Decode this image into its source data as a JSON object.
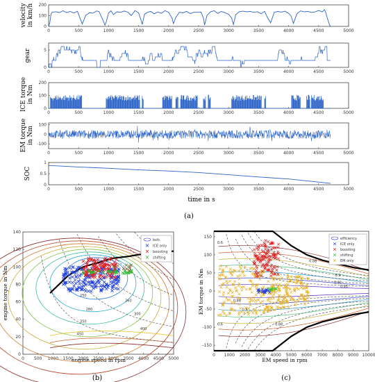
{
  "captions": {
    "a": "(a)",
    "b": "(b)",
    "c": "(c)"
  },
  "chart_data": [
    {
      "type": "line",
      "ylabel": "velocity in km/h",
      "xlim": [
        0,
        5000
      ],
      "ylim": [
        0,
        200
      ],
      "xticks": [
        "0",
        "500",
        "1000",
        "1500",
        "2000",
        "2500",
        "3000",
        "3500",
        "4000",
        "4500",
        "5000"
      ],
      "yticks": [
        "0",
        "100",
        "200"
      ],
      "color": "#2a62c8",
      "x": [
        0,
        20,
        40,
        60,
        120,
        180,
        240,
        300,
        360,
        420,
        480,
        520,
        560,
        620,
        680,
        740,
        800,
        840,
        900,
        940,
        960,
        1000,
        1040,
        1080,
        1140,
        1200,
        1260,
        1320,
        1380,
        1440,
        1500,
        1540,
        1560,
        1600,
        1640,
        1700,
        1760,
        1820,
        1880,
        1940,
        2000,
        2060,
        2080,
        2120,
        2180,
        2240,
        2300,
        2360,
        2420,
        2480,
        2540,
        2580,
        2600,
        2640,
        2700,
        2760,
        2820,
        2880,
        2940,
        3000,
        3050,
        3080,
        3120,
        3180,
        3240,
        3300,
        3360,
        3420,
        3480,
        3540,
        3600,
        3640,
        3700,
        3760,
        3820,
        3880,
        3940,
        4000,
        4040,
        4080,
        4140,
        4200,
        4260,
        4320,
        4380,
        4440,
        4500,
        4560,
        4600,
        4620,
        4640,
        4660,
        4680,
        4700
      ],
      "y": [
        0,
        40,
        110,
        135,
        140,
        125,
        145,
        130,
        135,
        120,
        140,
        80,
        20,
        100,
        130,
        125,
        140,
        135,
        70,
        10,
        40,
        120,
        140,
        115,
        135,
        125,
        140,
        130,
        100,
        140,
        120,
        60,
        20,
        110,
        130,
        145,
        120,
        135,
        125,
        140,
        130,
        70,
        20,
        90,
        135,
        125,
        140,
        120,
        135,
        125,
        140,
        80,
        15,
        100,
        130,
        145,
        125,
        140,
        130,
        115,
        80,
        20,
        110,
        135,
        145,
        130,
        140,
        125,
        135,
        115,
        140,
        90,
        30,
        125,
        140,
        130,
        145,
        120,
        100,
        30,
        120,
        140,
        130,
        145,
        125,
        140,
        150,
        140,
        160,
        120,
        90,
        50,
        20,
        0
      ]
    },
    {
      "type": "line",
      "ylabel": "gear",
      "xlim": [
        0,
        5000
      ],
      "ylim": [
        0,
        7
      ],
      "xticks": [
        "0",
        "500",
        "1000",
        "1500",
        "2000",
        "2500",
        "3000",
        "3500",
        "4000",
        "4500",
        "5000"
      ],
      "yticks": [
        "0",
        "5"
      ],
      "color": "#2a62c8"
    },
    {
      "type": "bar",
      "ylabel": "ICE torque in Nm",
      "xlim": [
        0,
        5000
      ],
      "ylim": [
        0,
        200
      ],
      "xticks": [
        "0",
        "500",
        "1000",
        "1500",
        "2000",
        "2500",
        "3000",
        "3500",
        "4000",
        "4500",
        "5000"
      ],
      "yticks": [
        "0",
        "100",
        "200"
      ],
      "color": "#2a62c8"
    },
    {
      "type": "line",
      "ylabel": "EM torque in Nm",
      "xlim": [
        0,
        5000
      ],
      "ylim": [
        -150,
        120
      ],
      "xticks": [
        "0",
        "500",
        "1000",
        "1500",
        "2000",
        "2500",
        "3000",
        "3500",
        "4000",
        "4500",
        "5000"
      ],
      "yticks": [
        "100",
        "0",
        "-100"
      ],
      "color": "#2a62c8"
    },
    {
      "type": "line",
      "ylabel": "SOC",
      "xlabel": "time in s",
      "xlim": [
        0,
        5000
      ],
      "ylim": [
        0,
        1
      ],
      "xticks": [
        "0",
        "500",
        "1000",
        "1500",
        "2000",
        "2500",
        "3000",
        "3500",
        "4000",
        "4500",
        "5000"
      ],
      "yticks": [
        "0",
        "0.5",
        "1"
      ],
      "color": "#2a62c8",
      "x": [
        0,
        500,
        1000,
        1500,
        2000,
        2500,
        3000,
        3500,
        4000,
        4500,
        4700
      ],
      "y": [
        0.87,
        0.8,
        0.74,
        0.67,
        0.62,
        0.55,
        0.45,
        0.35,
        0.26,
        0.12,
        0.06
      ]
    },
    {
      "type": "scatter",
      "xlabel": "engine speed in rpm",
      "ylabel": "engine torque in Nm",
      "xlim": [
        0,
        5000
      ],
      "ylim": [
        0,
        140
      ],
      "xticks": [
        "0",
        "500",
        "1000",
        "1500",
        "2000",
        "2500",
        "3000",
        "3500",
        "4000",
        "4500",
        "5000"
      ],
      "yticks": [
        "0",
        "20",
        "40",
        "60",
        "80",
        "100",
        "120",
        "140"
      ],
      "legend": [
        "bsfc",
        "ICE only",
        "boosting",
        "shifting"
      ],
      "legend_colors": [
        "#3b3bcc",
        "#1f3fe0",
        "#e02020",
        "#2ec02e"
      ],
      "contour_labels": [
        "250",
        "260",
        "280",
        "300",
        "350",
        "400",
        "450"
      ],
      "x_max_torque": [
        900,
        1500,
        2000,
        2500,
        3000,
        3500,
        4000,
        4500,
        5000
      ],
      "y_max_torque": [
        70,
        90,
        100,
        105,
        110,
        112,
        115,
        117,
        118
      ]
    },
    {
      "type": "scatter",
      "xlabel": "EM speed in rpm",
      "ylabel": "EM torque in Nm",
      "xlim": [
        0,
        10000
      ],
      "ylim": [
        -165,
        165
      ],
      "xticks": [
        "0",
        "1000",
        "2000",
        "3000",
        "4000",
        "5000",
        "6000",
        "7000",
        "8000",
        "9000",
        "10000"
      ],
      "yticks": [
        "150",
        "100",
        "50",
        "0",
        "-50",
        "-100",
        "-150"
      ],
      "legend": [
        "efficiency",
        "ICE only",
        "boosting",
        "shifting",
        "EM only"
      ],
      "legend_colors": [
        "#3b3bcc",
        "#1f3fe0",
        "#e02020",
        "#2ec02e",
        "#e6b020"
      ],
      "contour_labels": [
        "0.6",
        "0.8",
        "0.88",
        "0.9",
        "0.92",
        "0.93",
        "0.88",
        "0.8",
        "0.6",
        "0.88"
      ],
      "x_limit": [
        0,
        3800,
        5000,
        6000,
        7000,
        8000,
        9000,
        10000
      ],
      "y_limit_pos": [
        165,
        165,
        125,
        100,
        85,
        75,
        65,
        58
      ],
      "y_limit_neg": [
        -165,
        -165,
        -125,
        -100,
        -85,
        -75,
        -65,
        -58
      ]
    }
  ]
}
